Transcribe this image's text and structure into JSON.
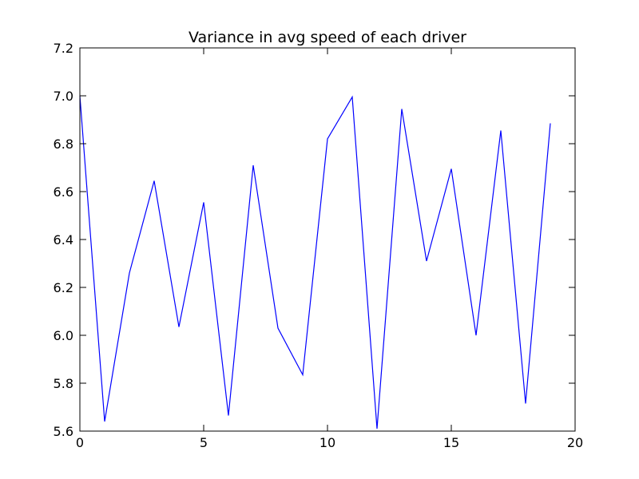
{
  "chart_data": {
    "type": "line",
    "title": "Variance in avg speed of each driver",
    "xlabel": "",
    "ylabel": "",
    "xlim": [
      0,
      20
    ],
    "ylim": [
      5.6,
      7.2
    ],
    "xticks": [
      0,
      5,
      10,
      15,
      20
    ],
    "yticks": [
      5.6,
      5.8,
      6.0,
      6.2,
      6.4,
      6.6,
      6.8,
      7.0,
      7.2
    ],
    "xtick_labels": [
      "0",
      "5",
      "10",
      "15",
      "20"
    ],
    "ytick_labels": [
      "5.6",
      "5.8",
      "6.0",
      "6.2",
      "6.4",
      "6.6",
      "6.8",
      "7.0",
      "7.2"
    ],
    "grid": false,
    "series": [
      {
        "color": "#0000ff",
        "x": [
          0,
          1,
          2,
          3,
          4,
          5,
          6,
          7,
          8,
          9,
          10,
          11,
          12,
          13,
          14,
          15,
          16,
          17,
          18,
          19
        ],
        "values": [
          7.0,
          5.64,
          6.26,
          6.645,
          6.035,
          6.555,
          5.665,
          6.71,
          6.03,
          5.835,
          6.82,
          6.995,
          5.61,
          6.945,
          6.31,
          6.695,
          6.0,
          6.855,
          5.715,
          6.885
        ]
      }
    ]
  }
}
